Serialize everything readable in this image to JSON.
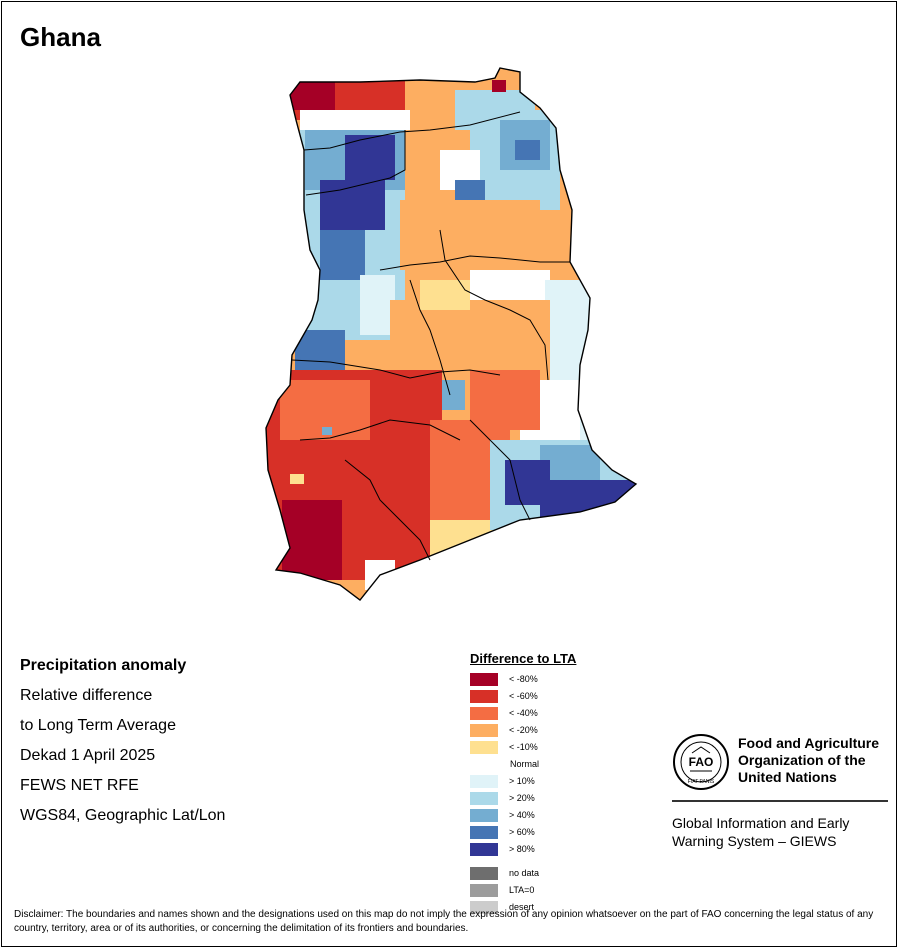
{
  "map": {
    "title": "Ghana",
    "info_lines": [
      "Precipitation anomaly",
      "Relative difference",
      "to Long Term Average",
      "Dekad 1 April 2025",
      "FEWS NET RFE",
      "WGS84, Geographic Lat/Lon"
    ]
  },
  "legend": {
    "title": "Difference to LTA",
    "classes": [
      {
        "label": "< -80%",
        "color": "#a50026"
      },
      {
        "label": "< -60%",
        "color": "#d73027"
      },
      {
        "label": "< -40%",
        "color": "#f46d43"
      },
      {
        "label": "< -20%",
        "color": "#fdae61"
      },
      {
        "label": "< -10%",
        "color": "#fee090"
      },
      {
        "label": "Normal",
        "color": "#ffffff"
      },
      {
        "label": "> 10%",
        "color": "#e0f3f8"
      },
      {
        "label": "> 20%",
        "color": "#abd9e9"
      },
      {
        "label": "> 40%",
        "color": "#74add1"
      },
      {
        "label": "> 60%",
        "color": "#4575b4"
      },
      {
        "label": "> 80%",
        "color": "#313695"
      }
    ],
    "extra": [
      {
        "label": "no data",
        "color": "#6e6e6e"
      },
      {
        "label": "LTA=0",
        "color": "#9c9c9c"
      },
      {
        "label": "desert",
        "color": "#cccccc"
      }
    ]
  },
  "org": {
    "name_lines": [
      "Food and Agriculture",
      "Organization of the",
      "United Nations"
    ],
    "logo_text": "FAO",
    "logo_motto": "FIAT PANIS",
    "system_lines": [
      "Global Information and Early",
      "Warning System – GIEWS"
    ]
  },
  "disclaimer": "Disclaimer: The boundaries and names shown and the designations used on this map do not imply the expression of any opinion whatsoever on the part of FAO concerning the legal status of any country, territory, area or of its authorities, or concerning the delimitation of its frontiers and boundaries.",
  "anomaly_regions": [
    {
      "zone": "far-north-west",
      "class": "< -60%"
    },
    {
      "zone": "north-east-corner",
      "class": "< -80%"
    },
    {
      "zone": "north-centre",
      "class": "< -20%"
    },
    {
      "zone": "north-east",
      "class": "> 20%"
    },
    {
      "zone": "north-west",
      "class": "> 80%"
    },
    {
      "zone": "west-centre",
      "class": "> 60%"
    },
    {
      "zone": "centre",
      "class": "< -20%"
    },
    {
      "zone": "centre-east",
      "class": "Normal"
    },
    {
      "zone": "south-west",
      "class": "< -60%"
    },
    {
      "zone": "south-west-coast",
      "class": "< -80%"
    },
    {
      "zone": "south-centre",
      "class": "< -40%"
    },
    {
      "zone": "south-east",
      "class": "> 80%"
    }
  ]
}
